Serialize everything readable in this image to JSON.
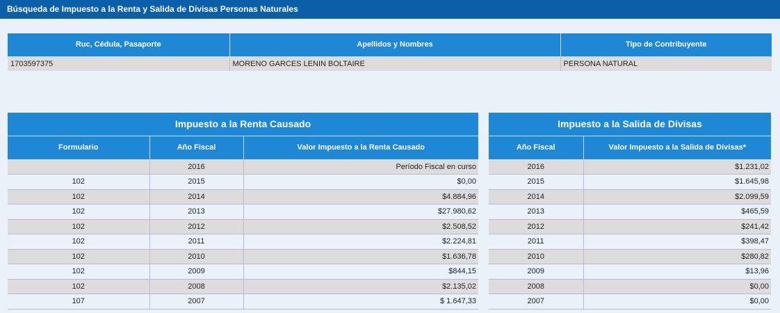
{
  "title": "Búsqueda de Impuesto a la Renta y Salida de Divisas Personas Naturales",
  "taxpayer": {
    "headers": [
      "Ruc, Cédula, Pasaporte",
      "Apellidos y Nombres",
      "Tipo de Contribuyente"
    ],
    "id": "1703597375",
    "name": "MORENO GARCES LENIN BOLTAIRE",
    "type": "PERSONA NATURAL"
  },
  "renta": {
    "caption": "Impuesto a la Renta Causado",
    "headers": [
      "Formulario",
      "Año Fiscal",
      "Valor Impuesto a la Renta Causado"
    ],
    "rows": [
      {
        "form": "",
        "year": "2016",
        "value": "Período Fiscal en curso"
      },
      {
        "form": "102",
        "year": "2015",
        "value": "$0,00"
      },
      {
        "form": "102",
        "year": "2014",
        "value": "$4.884,96"
      },
      {
        "form": "102",
        "year": "2013",
        "value": "$27.980,62"
      },
      {
        "form": "102",
        "year": "2012",
        "value": "$2.508,52"
      },
      {
        "form": "102",
        "year": "2011",
        "value": "$2.224,81"
      },
      {
        "form": "102",
        "year": "2010",
        "value": "$1.636,78"
      },
      {
        "form": "102",
        "year": "2009",
        "value": "$844,15"
      },
      {
        "form": "102",
        "year": "2008",
        "value": "$2.135,02"
      },
      {
        "form": "107",
        "year": "2007",
        "value": "$ 1.647,33"
      }
    ]
  },
  "divisas": {
    "caption": "Impuesto a la Salida de Divisas",
    "headers": [
      "Año Fiscal",
      "Valor Impuesto a la Salida de Divisas*"
    ],
    "rows": [
      {
        "year": "2016",
        "value": "$1.231,02"
      },
      {
        "year": "2015",
        "value": "$1.645,98"
      },
      {
        "year": "2014",
        "value": "$2.099,59"
      },
      {
        "year": "2013",
        "value": "$465,59"
      },
      {
        "year": "2012",
        "value": "$241,42"
      },
      {
        "year": "2011",
        "value": "$398,47"
      },
      {
        "year": "2010",
        "value": "$280,82"
      },
      {
        "year": "2009",
        "value": "$13,96"
      },
      {
        "year": "2008",
        "value": "$0,00"
      },
      {
        "year": "2007",
        "value": "$0,00"
      }
    ]
  }
}
